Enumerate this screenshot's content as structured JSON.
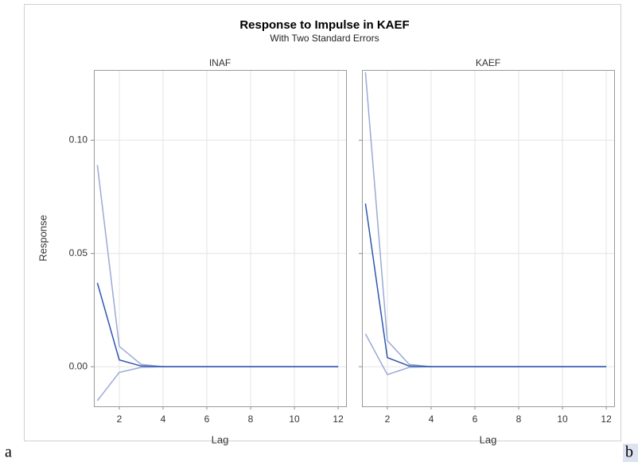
{
  "figure": {
    "title": "Response to Impulse in KAEF",
    "subtitle": "With Two Standard Errors",
    "corner_labels": [
      "a",
      "b"
    ]
  },
  "chart_data": [
    {
      "type": "line",
      "panel_title": "INAF",
      "xlabel": "Lag",
      "ylabel": "Response",
      "x": [
        1,
        2,
        3,
        4,
        5,
        6,
        7,
        8,
        9,
        10,
        11,
        12
      ],
      "series": [
        {
          "color": "#9aaad6",
          "values": [
            0.089,
            0.009,
            0.001,
            0,
            0,
            0,
            0,
            0,
            0,
            0,
            0,
            0
          ]
        },
        {
          "color": "#9aaad6",
          "values": [
            -0.015,
            -0.0025,
            -0.0003,
            0,
            0,
            0,
            0,
            0,
            0,
            0,
            0,
            0
          ]
        },
        {
          "color": "#2f56ad",
          "values": [
            0.037,
            0.003,
            0.0003,
            0,
            0,
            0,
            0,
            0,
            0,
            0,
            0,
            0
          ]
        }
      ],
      "xlim": [
        0.84,
        12.36
      ],
      "xticks": [
        2,
        4,
        6,
        8,
        10,
        12
      ],
      "ylim": [
        -0.0175,
        0.131
      ],
      "yticks": [
        {
          "value": 0,
          "label": "0.00"
        },
        {
          "value": 0.05,
          "label": "0.05"
        },
        {
          "value": 0.1,
          "label": "0.10"
        }
      ],
      "grid": true
    },
    {
      "type": "line",
      "panel_title": "KAEF",
      "xlabel": "Lag",
      "x": [
        1,
        2,
        3,
        4,
        5,
        6,
        7,
        8,
        9,
        10,
        11,
        12
      ],
      "series": [
        {
          "color": "#9aaad6",
          "values": [
            0.13,
            0.0115,
            0.001,
            0,
            0,
            0,
            0,
            0,
            0,
            0,
            0,
            0
          ]
        },
        {
          "color": "#9aaad6",
          "values": [
            0.0145,
            -0.0035,
            -0.0003,
            0,
            0,
            0,
            0,
            0,
            0,
            0,
            0,
            0
          ]
        },
        {
          "color": "#2f56ad",
          "values": [
            0.072,
            0.004,
            0.0003,
            0,
            0,
            0,
            0,
            0,
            0,
            0,
            0,
            0
          ]
        }
      ],
      "xlim": [
        0.84,
        12.36
      ],
      "xticks": [
        2,
        4,
        6,
        8,
        10,
        12
      ],
      "ylim": [
        -0.0175,
        0.131
      ],
      "yticks": [
        0,
        0.05,
        0.1
      ],
      "grid": true
    }
  ]
}
